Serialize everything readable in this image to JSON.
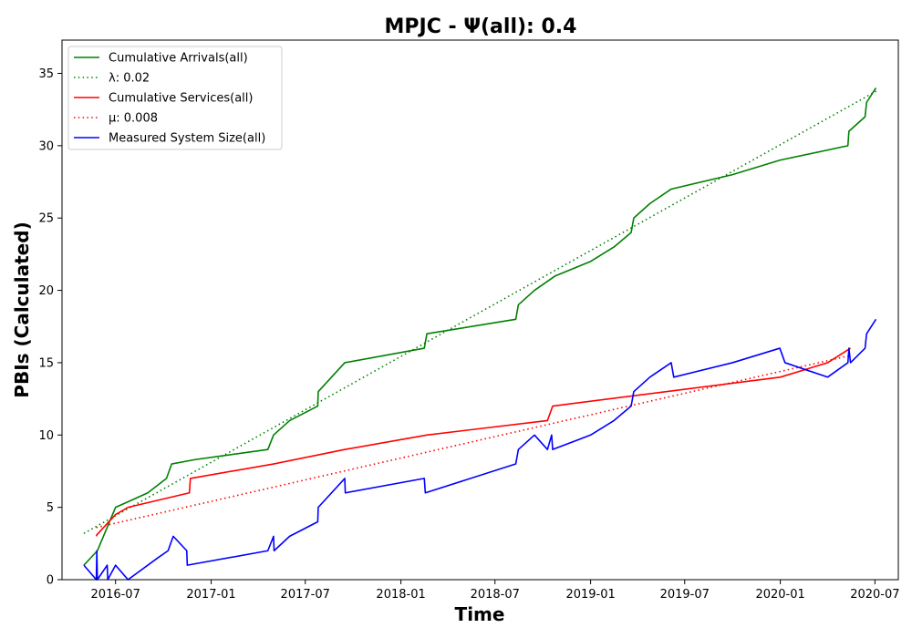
{
  "chart_data": {
    "type": "line",
    "title": "MPJC -  Ψ(all): 0.4",
    "xlabel": "Time",
    "ylabel": "PBIs (Calculated)",
    "xlim": [
      "2016-03-20",
      "2020-08-15"
    ],
    "ylim": [
      0,
      37.3
    ],
    "x_ticks": [
      "2016-07",
      "2017-01",
      "2017-07",
      "2018-01",
      "2018-07",
      "2019-01",
      "2019-07",
      "2020-01",
      "2020-07"
    ],
    "y_ticks": [
      0,
      5,
      10,
      15,
      20,
      25,
      30,
      35
    ],
    "grid": false,
    "legend_position": "top-left",
    "colors": {
      "green": "#008000",
      "red": "#ff0000",
      "blue": "#0000ff"
    },
    "series": [
      {
        "name": "Cumulative Arrivals(all)",
        "style": "solid",
        "color": "#008000",
        "points": [
          [
            "2016-05-01",
            1
          ],
          [
            "2016-05-27",
            2
          ],
          [
            "2016-07-01",
            5
          ],
          [
            "2016-08-01",
            5.5
          ],
          [
            "2016-09-01",
            6
          ],
          [
            "2016-10-07",
            7
          ],
          [
            "2016-10-17",
            8
          ],
          [
            "2016-12-01",
            8.3
          ],
          [
            "2017-04-20",
            9
          ],
          [
            "2017-05-01",
            10
          ],
          [
            "2017-06-01",
            11
          ],
          [
            "2017-07-25",
            12
          ],
          [
            "2017-07-26",
            13
          ],
          [
            "2017-09-15",
            15
          ],
          [
            "2018-02-15",
            16
          ],
          [
            "2018-02-20",
            17
          ],
          [
            "2018-08-10",
            18
          ],
          [
            "2018-08-15",
            19
          ],
          [
            "2018-09-15",
            20
          ],
          [
            "2018-10-25",
            21
          ],
          [
            "2019-01-01",
            22
          ],
          [
            "2019-02-15",
            23
          ],
          [
            "2019-03-20",
            24
          ],
          [
            "2019-03-25",
            25
          ],
          [
            "2019-04-25",
            26
          ],
          [
            "2019-06-05",
            27
          ],
          [
            "2019-10-01",
            28
          ],
          [
            "2019-12-31",
            29
          ],
          [
            "2020-05-10",
            30
          ],
          [
            "2020-05-12",
            31
          ],
          [
            "2020-06-12",
            32
          ],
          [
            "2020-06-15",
            33
          ],
          [
            "2020-07-03",
            34
          ]
        ]
      },
      {
        "name": "λ: 0.02",
        "style": "dotted",
        "color": "#008000",
        "points": [
          [
            "2016-05-01",
            3.2
          ],
          [
            "2020-07-05",
            33.8
          ]
        ]
      },
      {
        "name": "Cumulative Services(all)",
        "style": "solid",
        "color": "#ff0000",
        "points": [
          [
            "2016-05-25",
            3
          ],
          [
            "2016-05-26",
            3.1
          ],
          [
            "2016-07-01",
            4.5
          ],
          [
            "2016-07-25",
            5
          ],
          [
            "2016-11-20",
            6
          ],
          [
            "2016-11-22",
            7
          ],
          [
            "2017-05-01",
            8
          ],
          [
            "2017-09-15",
            9
          ],
          [
            "2018-02-20",
            10
          ],
          [
            "2018-10-10",
            11
          ],
          [
            "2018-10-20",
            12
          ],
          [
            "2020-01-01",
            14
          ],
          [
            "2020-04-01",
            15
          ],
          [
            "2020-05-15",
            16
          ]
        ]
      },
      {
        "name": "μ: 0.008",
        "style": "dotted",
        "color": "#ff0000",
        "points": [
          [
            "2016-05-25",
            3.6
          ],
          [
            "2020-05-15",
            15.5
          ]
        ]
      },
      {
        "name": "Measured System Size(all)",
        "style": "solid",
        "color": "#0000ff",
        "points": [
          [
            "2016-05-01",
            1
          ],
          [
            "2016-05-25",
            0
          ],
          [
            "2016-05-26",
            2
          ],
          [
            "2016-05-27",
            0
          ],
          [
            "2016-06-15",
            1
          ],
          [
            "2016-06-16",
            0
          ],
          [
            "2016-07-01",
            1
          ],
          [
            "2016-07-25",
            0
          ],
          [
            "2016-09-20",
            1.5
          ],
          [
            "2016-10-10",
            2
          ],
          [
            "2016-10-20",
            3
          ],
          [
            "2016-11-15",
            2
          ],
          [
            "2016-11-16",
            1
          ],
          [
            "2017-04-20",
            2
          ],
          [
            "2017-05-01",
            3
          ],
          [
            "2017-05-02",
            2
          ],
          [
            "2017-06-01",
            3
          ],
          [
            "2017-07-25",
            4
          ],
          [
            "2017-07-26",
            5
          ],
          [
            "2017-09-15",
            7
          ],
          [
            "2017-09-16",
            6
          ],
          [
            "2018-02-15",
            7
          ],
          [
            "2018-02-17",
            6
          ],
          [
            "2018-08-10",
            8
          ],
          [
            "2018-08-15",
            9
          ],
          [
            "2018-09-15",
            10
          ],
          [
            "2018-10-10",
            9
          ],
          [
            "2018-10-18",
            10
          ],
          [
            "2018-10-20",
            9
          ],
          [
            "2019-01-01",
            10
          ],
          [
            "2019-02-15",
            11
          ],
          [
            "2019-03-20",
            12
          ],
          [
            "2019-03-25",
            13
          ],
          [
            "2019-04-25",
            14
          ],
          [
            "2019-06-05",
            15
          ],
          [
            "2019-06-10",
            14
          ],
          [
            "2019-10-01",
            15
          ],
          [
            "2019-12-31",
            16
          ],
          [
            "2020-01-10",
            15
          ],
          [
            "2020-04-01",
            14
          ],
          [
            "2020-05-10",
            15
          ],
          [
            "2020-05-12",
            16
          ],
          [
            "2020-05-15",
            15
          ],
          [
            "2020-06-12",
            16
          ],
          [
            "2020-06-15",
            17
          ],
          [
            "2020-07-03",
            18
          ]
        ]
      }
    ]
  }
}
